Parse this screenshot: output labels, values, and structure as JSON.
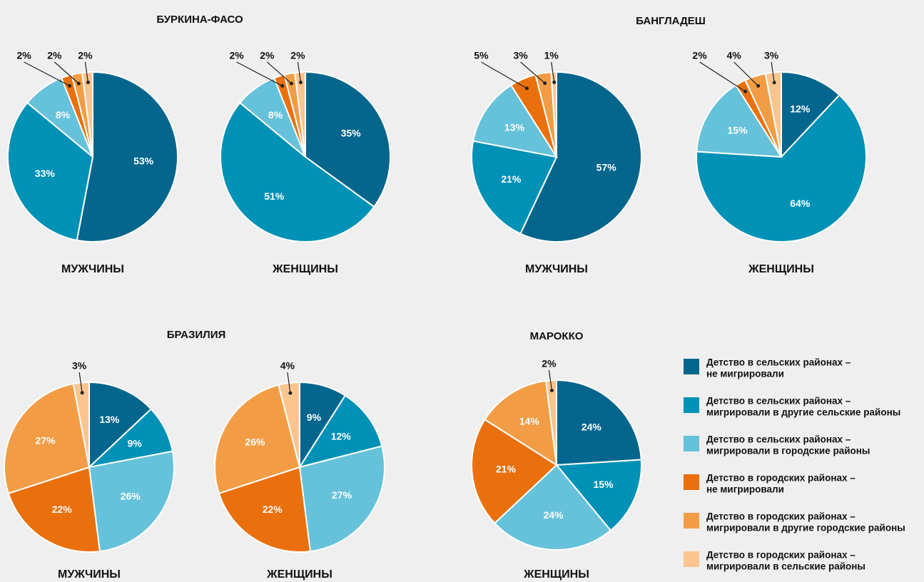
{
  "chart_data": [
    {
      "type": "pie",
      "title": "БУРКИНА-ФАСО",
      "pies": [
        {
          "label": "МУЖЧИНЫ",
          "values": [
            53,
            33,
            8,
            2,
            2,
            2
          ],
          "value_labels": [
            "53%",
            "33%",
            "8%",
            "2%",
            "2%",
            "2%"
          ]
        },
        {
          "label": "ЖЕНЩИНЫ",
          "values": [
            35,
            51,
            8,
            2,
            2,
            2
          ],
          "value_labels": [
            "35%",
            "51%",
            "8%",
            "2%",
            "2%",
            "2%"
          ]
        }
      ]
    },
    {
      "type": "pie",
      "title": "БАНГЛАДЕШ",
      "pies": [
        {
          "label": "МУЖЧИНЫ",
          "values": [
            57,
            21,
            13,
            5,
            3,
            1
          ],
          "value_labels": [
            "57%",
            "21%",
            "13%",
            "5%",
            "3%",
            "1%"
          ]
        },
        {
          "label": "ЖЕНЩИНЫ",
          "values": [
            12,
            64,
            15,
            2,
            4,
            3
          ],
          "value_labels": [
            "12%",
            "64%",
            "15%",
            "2%",
            "4%",
            "3%"
          ]
        }
      ]
    },
    {
      "type": "pie",
      "title": "БРАЗИЛИЯ",
      "pies": [
        {
          "label": "МУЖЧИНЫ",
          "values": [
            13,
            9,
            26,
            22,
            27,
            3
          ],
          "value_labels": [
            "13%",
            "9%",
            "26%",
            "22%",
            "27%",
            "3%"
          ]
        },
        {
          "label": "ЖЕНЩИНЫ",
          "values": [
            9,
            12,
            27,
            22,
            26,
            4
          ],
          "value_labels": [
            "9%",
            "12%",
            "27%",
            "22%",
            "26%",
            "4%"
          ]
        }
      ]
    },
    {
      "type": "pie",
      "title": "МАРОККО",
      "pies": [
        {
          "label": "ЖЕНЩИНЫ",
          "values": [
            24,
            15,
            24,
            21,
            14,
            2
          ],
          "value_labels": [
            "24%",
            "15%",
            "24%",
            "21%",
            "14%",
            "2%"
          ]
        }
      ]
    }
  ],
  "legend": {
    "categories": [
      [
        "Детство в сельских районах –",
        "не мигрировали"
      ],
      [
        "Детство в сельских районах –",
        "мигрировали в другие сельские районы"
      ],
      [
        "Детство в сельских районах –",
        "мигрировали в городские районы"
      ],
      [
        "Детство в городских районах –",
        "не мигрировали"
      ],
      [
        "Детство в городских районах –",
        "мигрировали в другие городские районы"
      ],
      [
        "Детство в городских районах –",
        "мигрировали в сельские районы"
      ]
    ],
    "colors": [
      "#05668d",
      "#0091b6",
      "#65c2da",
      "#ea700d",
      "#f29d45",
      "#fbc58f"
    ]
  }
}
